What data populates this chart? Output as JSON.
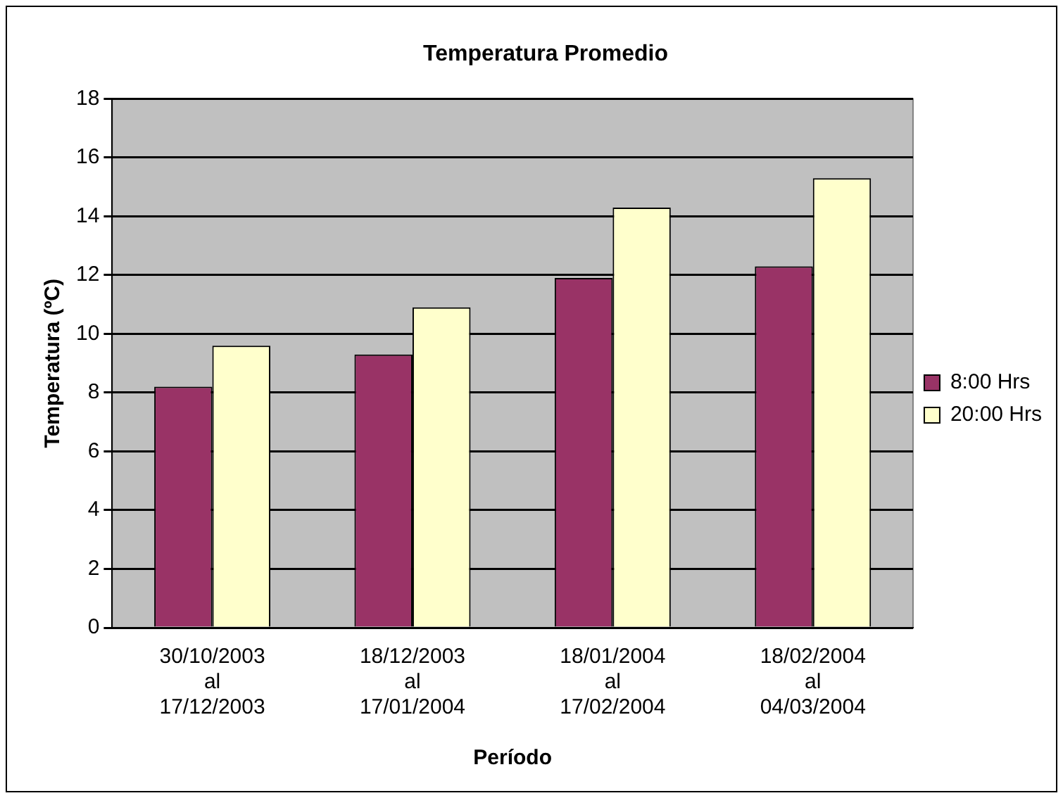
{
  "chart_data": {
    "type": "bar",
    "title": "Temperatura Promedio",
    "xlabel": "Período",
    "ylabel": "Temperatura (ºC)",
    "categories": [
      "30/10/2003\nal\n17/12/2003",
      "18/12/2003\nal\n17/01/2004",
      "18/01/2004\nal\n17/02/2004",
      "18/02/2004\nal\n04/03/2004"
    ],
    "series": [
      {
        "name": "8:00 Hrs",
        "color": "#993366",
        "values": [
          8.2,
          9.3,
          11.9,
          12.3
        ]
      },
      {
        "name": "20:00 Hrs",
        "color": "#ffffcc",
        "values": [
          9.6,
          10.9,
          14.3,
          15.3
        ]
      }
    ],
    "ylim": [
      0,
      18
    ],
    "yticks": [
      0,
      2,
      4,
      6,
      8,
      10,
      12,
      14,
      16,
      18
    ],
    "grid": "y",
    "legend": "right"
  }
}
